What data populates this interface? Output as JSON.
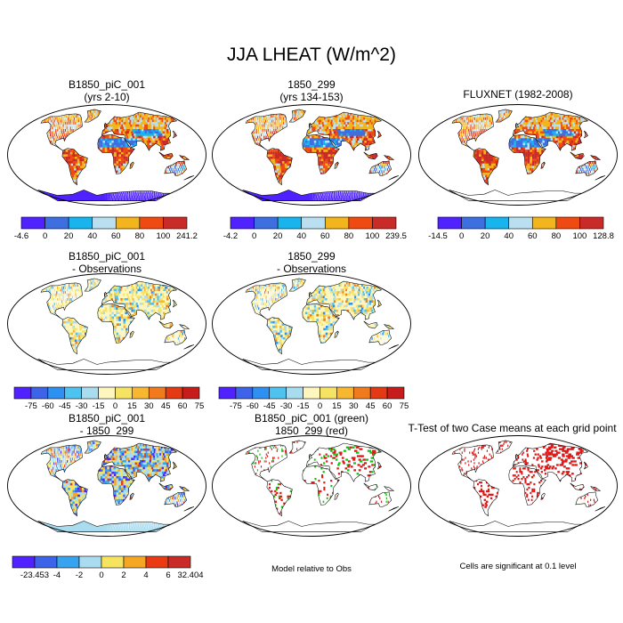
{
  "title": "JJA LHEAT (W/m^2)",
  "colors": {
    "abs": [
      "#4f22ff",
      "#3d6fe0",
      "#18b4ee",
      "#b9dff0",
      "#f2b51d",
      "#f04a13",
      "#c82b28"
    ],
    "diff": [
      "#4f22ff",
      "#3d63e8",
      "#2e91f2",
      "#4fc3f0",
      "#a9dcef",
      "#fdf6bf",
      "#f7e363",
      "#f7b731",
      "#f07a1c",
      "#e33a13",
      "#c71c1c"
    ],
    "diff2": [
      "#4f22ff",
      "#3d63e8",
      "#38a3ee",
      "#a9dcef",
      "#f7e45e",
      "#f5a623",
      "#ea3a13",
      "#c82b28"
    ],
    "sig": "#e01919",
    "green": "#12c40f",
    "ocean": "#ffffff"
  },
  "panels": {
    "p1": {
      "line1": "B1850_piC_001",
      "line2": "(yrs 2-10)"
    },
    "p2": {
      "line1": "1850_299",
      "line2": "(yrs 134-153)"
    },
    "p3": {
      "line1": "FLUXNET (1982-2008)",
      "line2": ""
    },
    "p4": {
      "line1": "B1850_piC_001",
      "line2": "- Observations"
    },
    "p5": {
      "line1": "1850_299",
      "line2": "- Observations"
    },
    "p6": {
      "line1": "B1850_piC_001",
      "line2": "- 1850_299"
    },
    "p7": {
      "line1": "B1850_piC_001 (green)",
      "line2": "1850_299 (red)"
    },
    "p8": {
      "line1": "T-Test of two Case means at each grid point",
      "line2": ""
    }
  },
  "colorbars": {
    "cb1": {
      "labels": [
        "-4.6",
        "0",
        "20",
        "40",
        "60",
        "80",
        "100",
        "241.2"
      ]
    },
    "cb2": {
      "labels": [
        "-4.2",
        "0",
        "20",
        "40",
        "60",
        "80",
        "100",
        "239.5"
      ]
    },
    "cb3": {
      "labels": [
        "-14.5",
        "0",
        "20",
        "40",
        "60",
        "80",
        "100",
        "128.8"
      ]
    },
    "cb4": {
      "labels": [
        "-75",
        "-60",
        "-45",
        "-30",
        "-15",
        "0",
        "15",
        "30",
        "45",
        "60",
        "75"
      ]
    },
    "cb5": {
      "labels": [
        "-75",
        "-60",
        "-45",
        "-30",
        "-15",
        "0",
        "15",
        "30",
        "45",
        "60",
        "75"
      ]
    },
    "cb6": {
      "labels": [
        "-23.453",
        "-4",
        "-2",
        "0",
        "2",
        "4",
        "6",
        "32.404"
      ]
    }
  },
  "notes": {
    "model_relative": "Model relative to Obs",
    "significant": "Cells are significant at 0.1 level"
  }
}
